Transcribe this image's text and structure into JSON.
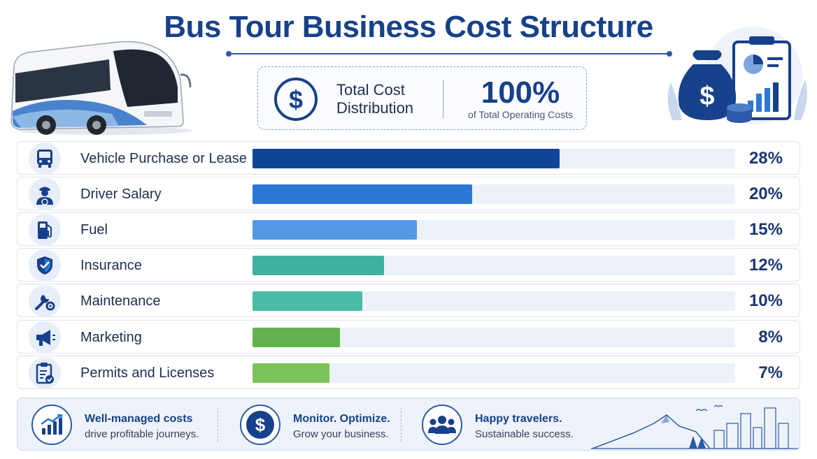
{
  "title": "Bus Tour Business Cost Structure",
  "summary": {
    "label": "Total Cost Distribution",
    "value": "100%",
    "sublabel": "of Total Operating Costs",
    "icon": "dollar-coin-icon"
  },
  "chart_data": {
    "type": "bar",
    "orientation": "horizontal",
    "title": "Bus Tour Business Cost Structure",
    "xlim": [
      0,
      44
    ],
    "categories": [
      "Vehicle Purchase or Lease",
      "Driver Salary",
      "Fuel",
      "Insurance",
      "Maintenance",
      "Marketing",
      "Permits and Licenses"
    ],
    "values": [
      28,
      20,
      15,
      12,
      10,
      8,
      7
    ],
    "value_labels": [
      "28%",
      "20%",
      "15%",
      "12%",
      "10%",
      "8%",
      "7%"
    ],
    "icons": [
      "bus-icon",
      "driver-icon",
      "fuel-pump-icon",
      "shield-check-icon",
      "wrench-gear-icon",
      "megaphone-icon",
      "clipboard-check-icon"
    ],
    "colors": [
      "#0f4597",
      "#2a77d6",
      "#5499e6",
      "#3fb1a3",
      "#49bba6",
      "#63b24f",
      "#7cc35a"
    ],
    "grid": false,
    "legend": "none"
  },
  "footer": {
    "items": [
      {
        "heading": "Well-managed costs",
        "text": "drive profitable journeys.",
        "icon": "growth-chart-icon"
      },
      {
        "heading": "Monitor. Optimize.",
        "text": "Grow your business.",
        "icon": "dollar-coin-icon"
      },
      {
        "heading": "Happy travelers.",
        "text": "Sustainable success.",
        "icon": "people-group-icon"
      }
    ]
  },
  "colors": {
    "primary": "#17418a",
    "track": "#edf1f8",
    "icon_bg": "#e7eef9"
  }
}
